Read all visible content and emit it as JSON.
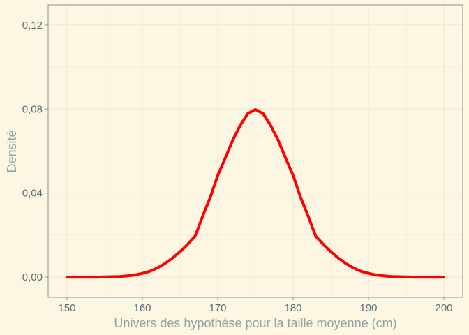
{
  "chart_data": {
    "type": "line",
    "title": "",
    "xlabel": "Univers des hypothèse pour la taille moyenne (cm)",
    "ylabel": "Densité",
    "xlim": [
      147.5,
      202.5
    ],
    "ylim": [
      -0.0096,
      0.1296
    ],
    "x_ticks": [
      150,
      160,
      170,
      180,
      190,
      200
    ],
    "x_tick_labels": [
      "150",
      "160",
      "170",
      "180",
      "190",
      "200"
    ],
    "y_ticks": [
      0.0,
      0.04,
      0.08,
      0.12
    ],
    "y_tick_labels": [
      "0,00",
      "0,04",
      "0,08",
      "0,12"
    ],
    "grid": true,
    "series": [
      {
        "color": "#ff0000",
        "x": [
          150,
          151,
          152,
          153,
          154,
          155,
          156,
          157,
          158,
          159,
          160,
          161,
          162,
          163,
          164,
          165,
          166,
          167,
          168,
          169,
          170,
          171,
          172,
          173,
          174,
          175,
          176,
          177,
          178,
          179,
          180,
          181,
          182,
          183,
          184,
          185,
          186,
          187,
          188,
          189,
          190,
          191,
          192,
          193,
          194,
          195,
          196,
          197,
          198,
          199,
          200
        ],
        "y": [
          0.0,
          0.0,
          0.0,
          0.0,
          0.0,
          0.0001,
          0.0002,
          0.0003,
          0.0006,
          0.001,
          0.0018,
          0.0028,
          0.0044,
          0.0065,
          0.0091,
          0.0121,
          0.0156,
          0.0195,
          0.029,
          0.0379,
          0.0484,
          0.0567,
          0.0653,
          0.0724,
          0.0779,
          0.0798,
          0.0779,
          0.0724,
          0.0653,
          0.0567,
          0.0484,
          0.0379,
          0.029,
          0.0195,
          0.0156,
          0.0121,
          0.0091,
          0.0065,
          0.0044,
          0.0028,
          0.0018,
          0.001,
          0.0006,
          0.0003,
          0.0002,
          0.0001,
          0.0,
          0.0,
          0.0,
          0.0,
          0.0
        ]
      }
    ]
  },
  "colors": {
    "background": "#fdf6e3",
    "grid": "#eee8d5",
    "axis": "#839496",
    "tick_text": "#586e75",
    "axis_title": "#93a1a1",
    "line": "#ff0000"
  }
}
